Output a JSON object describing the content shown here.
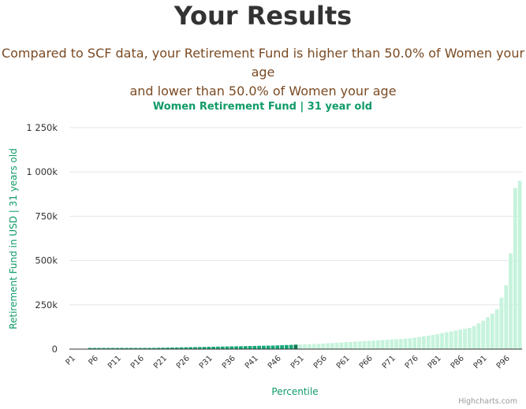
{
  "header": {
    "title": "Your Results",
    "subtitle_line1": "Compared to SCF data, your Retirement Fund is higher than 50.0% of Women your age",
    "subtitle_line2": "and lower than 50.0% of Women your age"
  },
  "colors": {
    "highlight_bar": "#16a77a",
    "user_bar": "#0b7a55",
    "rest_bar": "#c6f3dc",
    "accent_text": "#0f9b67"
  },
  "chart_data": {
    "type": "bar",
    "title": "Women Retirement Fund | 31 year old",
    "xlabel": "Percentile",
    "ylabel": "Retirement Fund in USD | 31 years old",
    "ylim": [
      0,
      1250000
    ],
    "yticks": [
      {
        "value": 0,
        "label": "0"
      },
      {
        "value": 250000,
        "label": "250k"
      },
      {
        "value": 500000,
        "label": "500k"
      },
      {
        "value": 750000,
        "label": "750k"
      },
      {
        "value": 1000000,
        "label": "1 000k"
      },
      {
        "value": 1250000,
        "label": "1 250k"
      }
    ],
    "xtick_labels": [
      "P1",
      "P6",
      "P11",
      "P16",
      "P21",
      "P26",
      "P31",
      "P36",
      "P41",
      "P46",
      "P51",
      "P56",
      "P61",
      "P66",
      "P71",
      "P76",
      "P81",
      "P86",
      "P91",
      "P96"
    ],
    "highlight_through": "P50",
    "user_percentile": "P50",
    "grid": true,
    "legend": "none",
    "credits": "Highcharts.com",
    "values": [
      0,
      0,
      0,
      0,
      500,
      800,
      1000,
      1500,
      2000,
      2500,
      3000,
      3500,
      4000,
      4500,
      5000,
      5500,
      6000,
      6500,
      7000,
      7500,
      8000,
      8500,
      9000,
      9500,
      10000,
      10500,
      11000,
      11500,
      12000,
      12500,
      13000,
      13500,
      14000,
      14500,
      15000,
      15500,
      16000,
      16500,
      17000,
      17500,
      18000,
      18500,
      19000,
      19500,
      20000,
      21000,
      22000,
      23000,
      24000,
      25000,
      26000,
      27000,
      28000,
      29000,
      30000,
      31500,
      33000,
      34500,
      36000,
      37500,
      39000,
      40500,
      42000,
      43500,
      45000,
      46500,
      48000,
      49500,
      51000,
      52500,
      54000,
      55500,
      57000,
      59000,
      61000,
      64000,
      68000,
      72000,
      76000,
      80000,
      85000,
      90000,
      95000,
      100000,
      105000,
      110000,
      115000,
      120000,
      130000,
      145000,
      160000,
      180000,
      200000,
      225000,
      290000,
      360000,
      540000,
      910000,
      950000
    ]
  }
}
